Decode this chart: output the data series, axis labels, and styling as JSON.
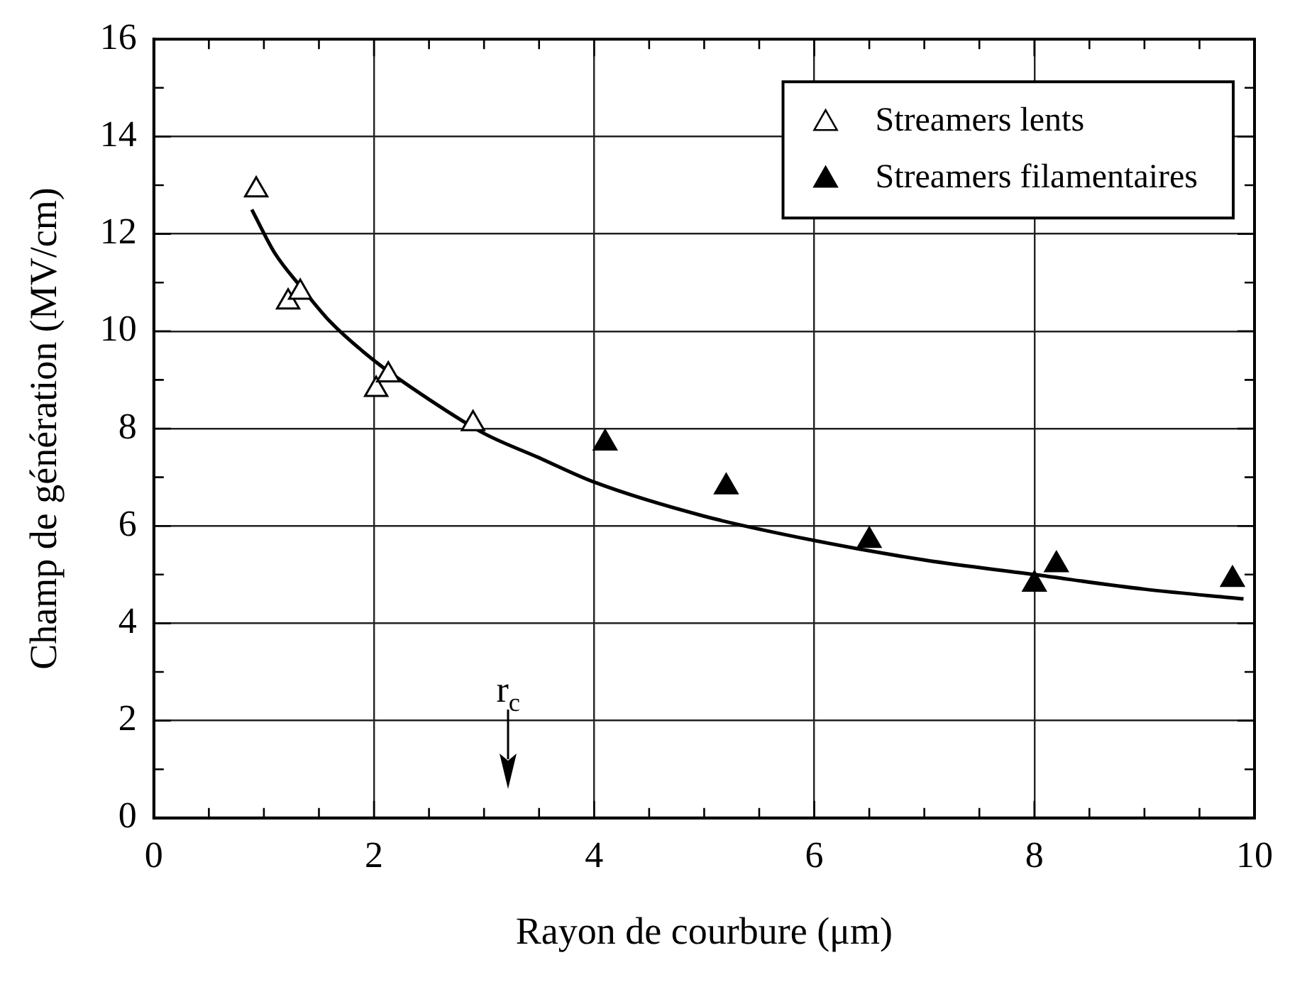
{
  "chart_data": {
    "type": "scatter",
    "xlabel": "Rayon de courbure (μm)",
    "ylabel": "Champ de génération (MV/cm)",
    "xlim": [
      0,
      10
    ],
    "ylim": [
      0,
      16
    ],
    "xticks": [
      0,
      {
        "value": 0.5,
        "label": null
      },
      2,
      {
        "value": 1,
        "label": null
      },
      {
        "value": 1.5,
        "label": null
      },
      {
        "value": 2.5,
        "label": null
      },
      {
        "value": 3,
        "label": null
      },
      {
        "value": 3.5,
        "label": null
      },
      4,
      {
        "value": 4.5,
        "label": null
      },
      {
        "value": 5,
        "label": null
      },
      {
        "value": 5.5,
        "label": null
      },
      6,
      {
        "value": 6.5,
        "label": null
      },
      {
        "value": 7,
        "label": null
      },
      {
        "value": 7.5,
        "label": null
      },
      8,
      {
        "value": 8.5,
        "label": null
      },
      {
        "value": 9,
        "label": null
      },
      {
        "value": 9.5,
        "label": null
      },
      10
    ],
    "yticks": [
      0,
      {
        "value": 1,
        "label": null
      },
      2,
      {
        "value": 3,
        "label": null
      },
      4,
      {
        "value": 5,
        "label": null
      },
      6,
      {
        "value": 7,
        "label": null
      },
      8,
      {
        "value": 9,
        "label": null
      },
      10,
      {
        "value": 11,
        "label": null
      },
      12,
      {
        "value": 13,
        "label": null
      },
      14,
      {
        "value": 15,
        "label": null
      },
      16
    ],
    "grid": true,
    "legend": "top right",
    "marker": "triangle",
    "series": [
      {
        "name": "Streamers lents",
        "color": "#ffffff",
        "x": [
          0.93,
          1.22,
          1.33,
          2.02,
          2.13,
          2.9
        ],
        "values": [
          12.9,
          10.6,
          10.8,
          8.8,
          9.1,
          8.1
        ]
      },
      {
        "name": "Streamers filamentaires",
        "color": "#000000",
        "x": [
          4.1,
          5.2,
          6.5,
          8.0,
          8.2,
          9.8
        ],
        "values": [
          7.7,
          6.8,
          5.7,
          4.8,
          5.2,
          4.9
        ]
      },
      {
        "type": "line",
        "color": "#000000",
        "marker": "none",
        "x": [
          0.89,
          1.1,
          1.34,
          1.6,
          2.0,
          2.5,
          3.0,
          3.5,
          4.0,
          5.0,
          6.0,
          7.0,
          8.0,
          9.0,
          9.9
        ],
        "values": [
          12.5,
          11.6,
          10.9,
          10.2,
          9.4,
          8.6,
          7.9,
          7.4,
          6.9,
          6.2,
          5.7,
          5.3,
          5.0,
          4.7,
          4.5
        ]
      }
    ],
    "annotations": [
      "r$_{c}$"
    ]
  }
}
